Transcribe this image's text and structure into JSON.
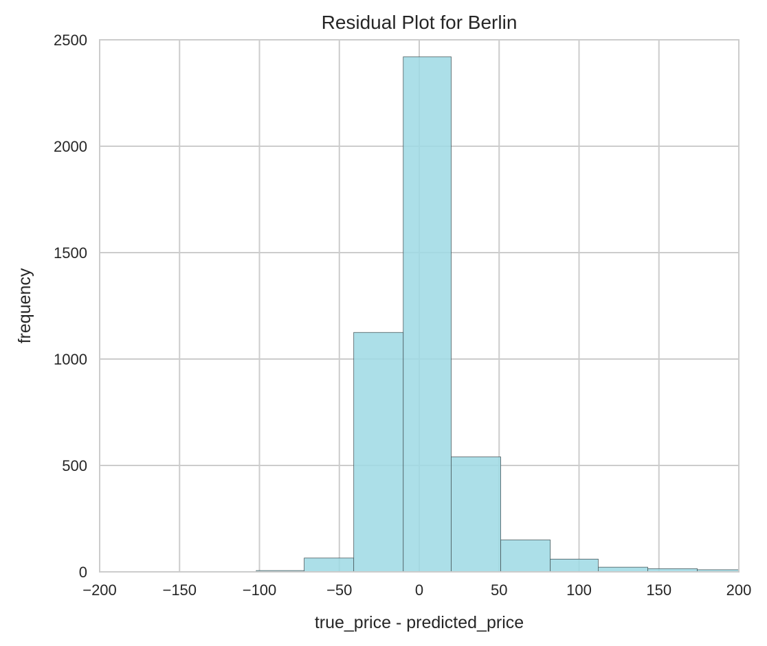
{
  "chart_data": {
    "type": "bar",
    "title": "Residual Plot for Berlin",
    "xlabel": "true_price - predicted_price",
    "ylabel": "frequency",
    "xlim": [
      -200,
      200
    ],
    "ylim": [
      0,
      2500
    ],
    "xticks": [
      -200,
      -150,
      -100,
      -50,
      0,
      50,
      100,
      150,
      200
    ],
    "xtick_labels": [
      "−200",
      "−150",
      "−100",
      "−50",
      "0",
      "50",
      "100",
      "150",
      "200"
    ],
    "yticks": [
      0,
      500,
      1000,
      1500,
      2000,
      2500
    ],
    "ytick_labels": [
      "0",
      "500",
      "1000",
      "1500",
      "2000",
      "2500"
    ],
    "grid": true,
    "bar_color": "#9ed9e4",
    "bins": [
      {
        "x0": -195,
        "x1": -163,
        "count": 1
      },
      {
        "x0": -163,
        "x1": -133,
        "count": 1
      },
      {
        "x0": -133,
        "x1": -102,
        "count": 2
      },
      {
        "x0": -102,
        "x1": -72,
        "count": 6
      },
      {
        "x0": -72,
        "x1": -41,
        "count": 65
      },
      {
        "x0": -41,
        "x1": -10,
        "count": 1125
      },
      {
        "x0": -10,
        "x1": 20,
        "count": 2420
      },
      {
        "x0": 20,
        "x1": 51,
        "count": 540
      },
      {
        "x0": 51,
        "x1": 82,
        "count": 150
      },
      {
        "x0": 82,
        "x1": 112,
        "count": 60
      },
      {
        "x0": 112,
        "x1": 143,
        "count": 22
      },
      {
        "x0": 143,
        "x1": 174,
        "count": 15
      },
      {
        "x0": 174,
        "x1": 200,
        "count": 10
      }
    ]
  }
}
